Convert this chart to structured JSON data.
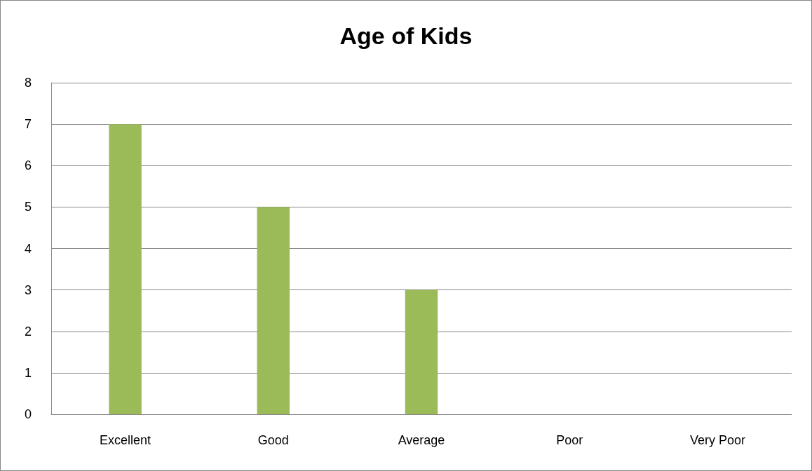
{
  "chart_data": {
    "type": "bar",
    "title": "Age of Kids",
    "categories": [
      "Excellent",
      "Good",
      "Average",
      "Poor",
      "Very Poor"
    ],
    "values": [
      7,
      5,
      3,
      0,
      0
    ],
    "color": "#9bbb59",
    "ylim": [
      0,
      8
    ],
    "yticks": [
      0,
      1,
      2,
      3,
      4,
      5,
      6,
      7,
      8
    ],
    "grid": "y"
  }
}
